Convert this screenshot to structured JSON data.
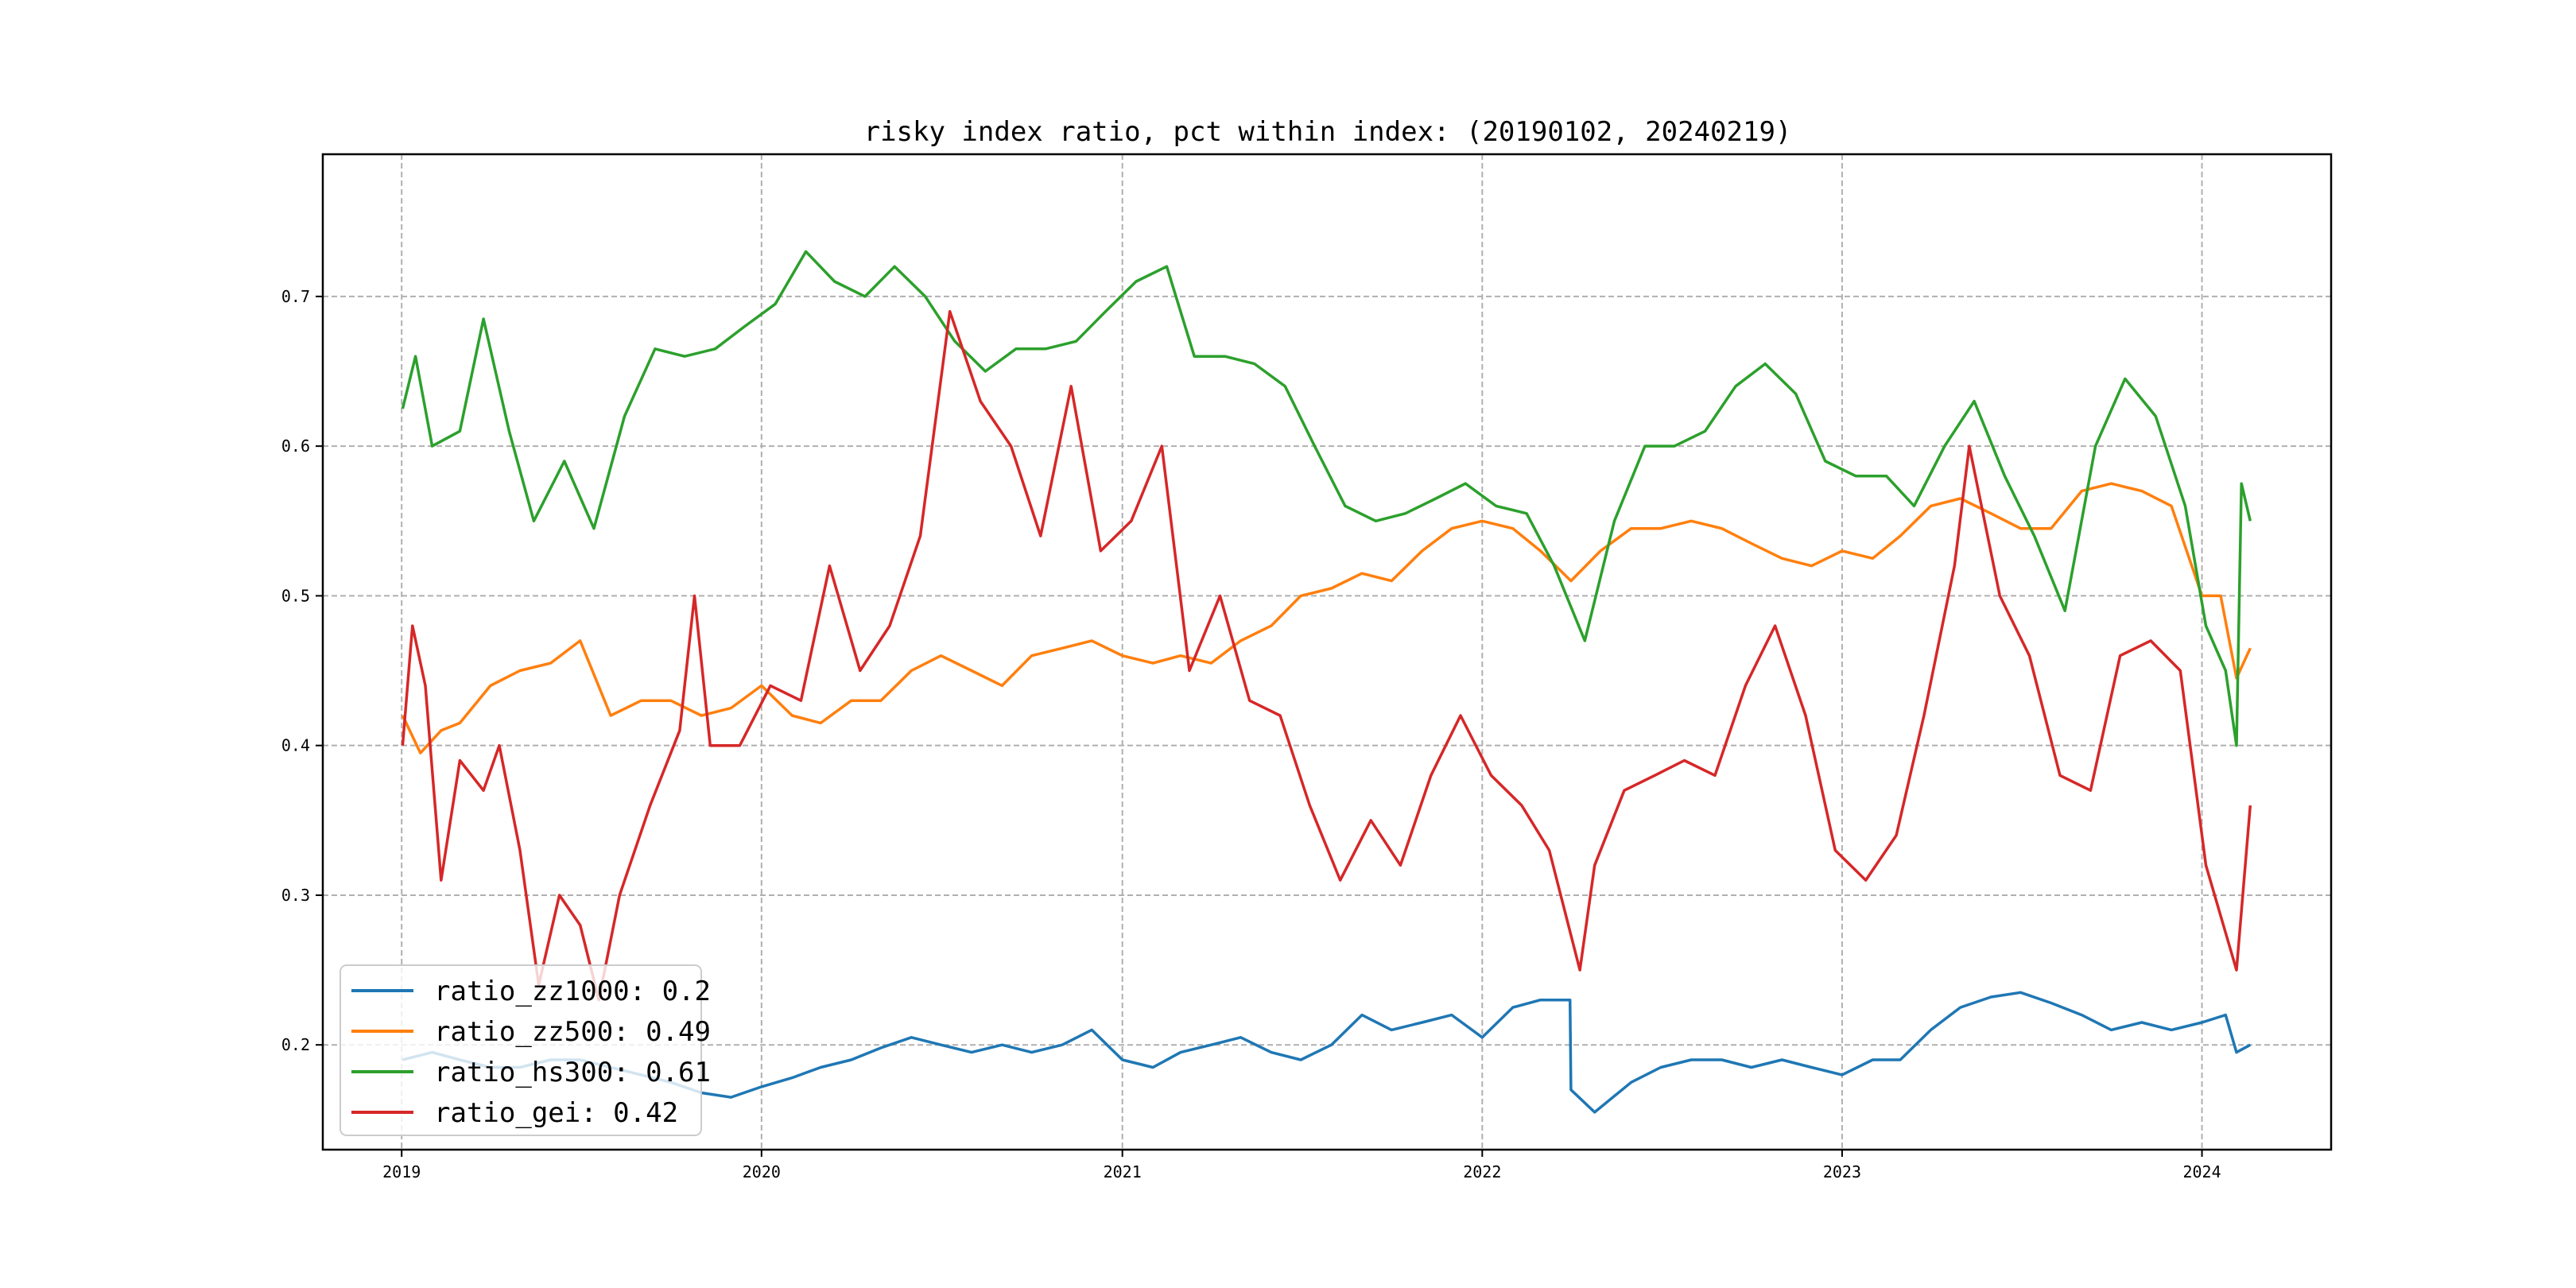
{
  "chart_data": {
    "type": "line",
    "title": "risky index ratio, pct within index: (20190102, 20240219)",
    "xlabel": "",
    "ylabel": "",
    "x_range": [
      "2018-10-13",
      "2024-05-11"
    ],
    "ylim": [
      0.13,
      0.795
    ],
    "x_ticks": [
      {
        "label": "2019",
        "date": "2019-01-01"
      },
      {
        "label": "2020",
        "date": "2020-01-01"
      },
      {
        "label": "2021",
        "date": "2021-01-01"
      },
      {
        "label": "2022",
        "date": "2022-01-01"
      },
      {
        "label": "2023",
        "date": "2023-01-01"
      },
      {
        "label": "2024",
        "date": "2024-01-01"
      }
    ],
    "y_ticks": [
      0.2,
      0.3,
      0.4,
      0.5,
      0.6,
      0.7
    ],
    "y_tick_labels": [
      "0.2",
      "0.3",
      "0.4",
      "0.5",
      "0.6",
      "0.7"
    ],
    "grid": true,
    "legend_position": "lower-left",
    "series": [
      {
        "name": "ratio_zz1000: 0.2",
        "color": "#1f77b4",
        "points": [
          [
            "2019-01-02",
            0.19
          ],
          [
            "2019-02-01",
            0.195
          ],
          [
            "2019-03-01",
            0.19
          ],
          [
            "2019-04-01",
            0.185
          ],
          [
            "2019-05-01",
            0.185
          ],
          [
            "2019-06-01",
            0.19
          ],
          [
            "2019-07-01",
            0.19
          ],
          [
            "2019-08-01",
            0.185
          ],
          [
            "2019-09-01",
            0.18
          ],
          [
            "2019-10-01",
            0.175
          ],
          [
            "2019-11-01",
            0.168
          ],
          [
            "2019-12-01",
            0.165
          ],
          [
            "2020-01-01",
            0.172
          ],
          [
            "2020-02-01",
            0.178
          ],
          [
            "2020-03-01",
            0.185
          ],
          [
            "2020-04-01",
            0.19
          ],
          [
            "2020-05-01",
            0.198
          ],
          [
            "2020-06-01",
            0.205
          ],
          [
            "2020-07-01",
            0.2
          ],
          [
            "2020-08-01",
            0.195
          ],
          [
            "2020-09-01",
            0.2
          ],
          [
            "2020-10-01",
            0.195
          ],
          [
            "2020-11-01",
            0.2
          ],
          [
            "2020-12-01",
            0.21
          ],
          [
            "2021-01-01",
            0.19
          ],
          [
            "2021-02-01",
            0.185
          ],
          [
            "2021-03-01",
            0.195
          ],
          [
            "2021-04-01",
            0.2
          ],
          [
            "2021-05-01",
            0.205
          ],
          [
            "2021-06-01",
            0.195
          ],
          [
            "2021-07-01",
            0.19
          ],
          [
            "2021-08-01",
            0.2
          ],
          [
            "2021-09-01",
            0.22
          ],
          [
            "2021-10-01",
            0.21
          ],
          [
            "2021-11-01",
            0.215
          ],
          [
            "2021-12-01",
            0.22
          ],
          [
            "2022-01-01",
            0.205
          ],
          [
            "2022-02-01",
            0.225
          ],
          [
            "2022-03-01",
            0.23
          ],
          [
            "2022-03-31",
            0.23
          ],
          [
            "2022-04-01",
            0.17
          ],
          [
            "2022-04-25",
            0.155
          ],
          [
            "2022-06-01",
            0.175
          ],
          [
            "2022-07-01",
            0.185
          ],
          [
            "2022-08-01",
            0.19
          ],
          [
            "2022-09-01",
            0.19
          ],
          [
            "2022-10-01",
            0.185
          ],
          [
            "2022-11-01",
            0.19
          ],
          [
            "2022-12-01",
            0.185
          ],
          [
            "2023-01-01",
            0.18
          ],
          [
            "2023-02-01",
            0.19
          ],
          [
            "2023-03-01",
            0.19
          ],
          [
            "2023-04-01",
            0.21
          ],
          [
            "2023-05-01",
            0.225
          ],
          [
            "2023-06-01",
            0.232
          ],
          [
            "2023-07-01",
            0.235
          ],
          [
            "2023-08-01",
            0.228
          ],
          [
            "2023-09-01",
            0.22
          ],
          [
            "2023-10-01",
            0.21
          ],
          [
            "2023-11-01",
            0.215
          ],
          [
            "2023-12-01",
            0.21
          ],
          [
            "2024-01-01",
            0.215
          ],
          [
            "2024-01-25",
            0.22
          ],
          [
            "2024-02-05",
            0.195
          ],
          [
            "2024-02-19",
            0.2
          ]
        ]
      },
      {
        "name": "ratio_zz500: 0.49",
        "color": "#ff7f0e",
        "points": [
          [
            "2019-01-02",
            0.42
          ],
          [
            "2019-01-20",
            0.395
          ],
          [
            "2019-02-10",
            0.41
          ],
          [
            "2019-03-01",
            0.415
          ],
          [
            "2019-04-01",
            0.44
          ],
          [
            "2019-05-01",
            0.45
          ],
          [
            "2019-06-01",
            0.455
          ],
          [
            "2019-07-01",
            0.47
          ],
          [
            "2019-08-01",
            0.42
          ],
          [
            "2019-09-01",
            0.43
          ],
          [
            "2019-10-01",
            0.43
          ],
          [
            "2019-11-01",
            0.42
          ],
          [
            "2019-12-01",
            0.425
          ],
          [
            "2020-01-01",
            0.44
          ],
          [
            "2020-02-01",
            0.42
          ],
          [
            "2020-03-01",
            0.415
          ],
          [
            "2020-04-01",
            0.43
          ],
          [
            "2020-05-01",
            0.43
          ],
          [
            "2020-06-01",
            0.45
          ],
          [
            "2020-07-01",
            0.46
          ],
          [
            "2020-08-01",
            0.45
          ],
          [
            "2020-09-01",
            0.44
          ],
          [
            "2020-10-01",
            0.46
          ],
          [
            "2020-11-01",
            0.465
          ],
          [
            "2020-12-01",
            0.47
          ],
          [
            "2021-01-01",
            0.46
          ],
          [
            "2021-02-01",
            0.455
          ],
          [
            "2021-03-01",
            0.46
          ],
          [
            "2021-04-01",
            0.455
          ],
          [
            "2021-05-01",
            0.47
          ],
          [
            "2021-06-01",
            0.48
          ],
          [
            "2021-07-01",
            0.5
          ],
          [
            "2021-08-01",
            0.505
          ],
          [
            "2021-09-01",
            0.515
          ],
          [
            "2021-10-01",
            0.51
          ],
          [
            "2021-11-01",
            0.53
          ],
          [
            "2021-12-01",
            0.545
          ],
          [
            "2022-01-01",
            0.55
          ],
          [
            "2022-02-01",
            0.545
          ],
          [
            "2022-03-01",
            0.53
          ],
          [
            "2022-04-01",
            0.51
          ],
          [
            "2022-05-01",
            0.53
          ],
          [
            "2022-06-01",
            0.545
          ],
          [
            "2022-07-01",
            0.545
          ],
          [
            "2022-08-01",
            0.55
          ],
          [
            "2022-09-01",
            0.545
          ],
          [
            "2022-10-01",
            0.535
          ],
          [
            "2022-11-01",
            0.525
          ],
          [
            "2022-12-01",
            0.52
          ],
          [
            "2023-01-01",
            0.53
          ],
          [
            "2023-02-01",
            0.525
          ],
          [
            "2023-03-01",
            0.54
          ],
          [
            "2023-04-01",
            0.56
          ],
          [
            "2023-05-01",
            0.565
          ],
          [
            "2023-06-01",
            0.555
          ],
          [
            "2023-07-01",
            0.545
          ],
          [
            "2023-08-01",
            0.545
          ],
          [
            "2023-09-01",
            0.57
          ],
          [
            "2023-10-01",
            0.575
          ],
          [
            "2023-11-01",
            0.57
          ],
          [
            "2023-12-01",
            0.56
          ],
          [
            "2024-01-01",
            0.5
          ],
          [
            "2024-01-20",
            0.5
          ],
          [
            "2024-02-05",
            0.445
          ],
          [
            "2024-02-19",
            0.465
          ]
        ]
      },
      {
        "name": "ratio_hs300: 0.61",
        "color": "#2ca02c",
        "points": [
          [
            "2019-01-02",
            0.625
          ],
          [
            "2019-01-15",
            0.66
          ],
          [
            "2019-02-01",
            0.6
          ],
          [
            "2019-03-01",
            0.61
          ],
          [
            "2019-03-25",
            0.685
          ],
          [
            "2019-04-20",
            0.61
          ],
          [
            "2019-05-15",
            0.55
          ],
          [
            "2019-06-15",
            0.59
          ],
          [
            "2019-07-15",
            0.545
          ],
          [
            "2019-08-15",
            0.62
          ],
          [
            "2019-09-15",
            0.665
          ],
          [
            "2019-10-15",
            0.66
          ],
          [
            "2019-11-15",
            0.665
          ],
          [
            "2019-12-15",
            0.68
          ],
          [
            "2020-01-15",
            0.695
          ],
          [
            "2020-02-15",
            0.73
          ],
          [
            "2020-03-15",
            0.71
          ],
          [
            "2020-04-15",
            0.7
          ],
          [
            "2020-05-15",
            0.72
          ],
          [
            "2020-06-15",
            0.7
          ],
          [
            "2020-07-15",
            0.67
          ],
          [
            "2020-08-15",
            0.65
          ],
          [
            "2020-09-15",
            0.665
          ],
          [
            "2020-10-15",
            0.665
          ],
          [
            "2020-11-15",
            0.67
          ],
          [
            "2020-12-15",
            0.69
          ],
          [
            "2021-01-15",
            0.71
          ],
          [
            "2021-02-15",
            0.72
          ],
          [
            "2021-03-15",
            0.66
          ],
          [
            "2021-04-15",
            0.66
          ],
          [
            "2021-05-15",
            0.655
          ],
          [
            "2021-06-15",
            0.64
          ],
          [
            "2021-07-15",
            0.6
          ],
          [
            "2021-08-15",
            0.56
          ],
          [
            "2021-09-15",
            0.55
          ],
          [
            "2021-10-15",
            0.555
          ],
          [
            "2021-11-15",
            0.565
          ],
          [
            "2021-12-15",
            0.575
          ],
          [
            "2022-01-15",
            0.56
          ],
          [
            "2022-02-15",
            0.555
          ],
          [
            "2022-03-15",
            0.52
          ],
          [
            "2022-04-15",
            0.47
          ],
          [
            "2022-05-15",
            0.55
          ],
          [
            "2022-06-15",
            0.6
          ],
          [
            "2022-07-15",
            0.6
          ],
          [
            "2022-08-15",
            0.61
          ],
          [
            "2022-09-15",
            0.64
          ],
          [
            "2022-10-15",
            0.655
          ],
          [
            "2022-11-15",
            0.635
          ],
          [
            "2022-12-15",
            0.59
          ],
          [
            "2023-01-15",
            0.58
          ],
          [
            "2023-02-15",
            0.58
          ],
          [
            "2023-03-15",
            0.56
          ],
          [
            "2023-04-15",
            0.6
          ],
          [
            "2023-05-15",
            0.63
          ],
          [
            "2023-06-15",
            0.58
          ],
          [
            "2023-07-15",
            0.54
          ],
          [
            "2023-08-15",
            0.49
          ],
          [
            "2023-09-15",
            0.6
          ],
          [
            "2023-10-15",
            0.645
          ],
          [
            "2023-11-15",
            0.62
          ],
          [
            "2023-12-15",
            0.56
          ],
          [
            "2024-01-05",
            0.48
          ],
          [
            "2024-01-25",
            0.45
          ],
          [
            "2024-02-05",
            0.4
          ],
          [
            "2024-02-10",
            0.575
          ],
          [
            "2024-02-19",
            0.55
          ]
        ]
      },
      {
        "name": "ratio_gei: 0.42",
        "color": "#d62728",
        "points": [
          [
            "2019-01-02",
            0.4
          ],
          [
            "2019-01-12",
            0.48
          ],
          [
            "2019-01-25",
            0.44
          ],
          [
            "2019-02-10",
            0.31
          ],
          [
            "2019-03-01",
            0.39
          ],
          [
            "2019-03-25",
            0.37
          ],
          [
            "2019-04-10",
            0.4
          ],
          [
            "2019-05-01",
            0.33
          ],
          [
            "2019-05-20",
            0.24
          ],
          [
            "2019-06-10",
            0.3
          ],
          [
            "2019-07-01",
            0.28
          ],
          [
            "2019-07-20",
            0.23
          ],
          [
            "2019-08-10",
            0.3
          ],
          [
            "2019-09-10",
            0.36
          ],
          [
            "2019-10-10",
            0.41
          ],
          [
            "2019-10-25",
            0.5
          ],
          [
            "2019-11-10",
            0.4
          ],
          [
            "2019-12-10",
            0.4
          ],
          [
            "2020-01-10",
            0.44
          ],
          [
            "2020-02-10",
            0.43
          ],
          [
            "2020-03-10",
            0.52
          ],
          [
            "2020-04-10",
            0.45
          ],
          [
            "2020-05-10",
            0.48
          ],
          [
            "2020-06-10",
            0.54
          ],
          [
            "2020-07-10",
            0.69
          ],
          [
            "2020-08-10",
            0.63
          ],
          [
            "2020-09-10",
            0.6
          ],
          [
            "2020-10-10",
            0.54
          ],
          [
            "2020-11-10",
            0.64
          ],
          [
            "2020-12-10",
            0.53
          ],
          [
            "2021-01-10",
            0.55
          ],
          [
            "2021-02-10",
            0.6
          ],
          [
            "2021-03-10",
            0.45
          ],
          [
            "2021-04-10",
            0.5
          ],
          [
            "2021-05-10",
            0.43
          ],
          [
            "2021-06-10",
            0.42
          ],
          [
            "2021-07-10",
            0.36
          ],
          [
            "2021-08-10",
            0.31
          ],
          [
            "2021-09-10",
            0.35
          ],
          [
            "2021-10-10",
            0.32
          ],
          [
            "2021-11-10",
            0.38
          ],
          [
            "2021-12-10",
            0.42
          ],
          [
            "2022-01-10",
            0.38
          ],
          [
            "2022-02-10",
            0.36
          ],
          [
            "2022-03-10",
            0.33
          ],
          [
            "2022-04-10",
            0.25
          ],
          [
            "2022-04-25",
            0.32
          ],
          [
            "2022-05-25",
            0.37
          ],
          [
            "2022-06-25",
            0.38
          ],
          [
            "2022-07-25",
            0.39
          ],
          [
            "2022-08-25",
            0.38
          ],
          [
            "2022-09-25",
            0.44
          ],
          [
            "2022-10-25",
            0.48
          ],
          [
            "2022-11-25",
            0.42
          ],
          [
            "2022-12-25",
            0.33
          ],
          [
            "2023-01-25",
            0.31
          ],
          [
            "2023-02-25",
            0.34
          ],
          [
            "2023-03-25",
            0.42
          ],
          [
            "2023-04-25",
            0.52
          ],
          [
            "2023-05-10",
            0.6
          ],
          [
            "2023-06-10",
            0.5
          ],
          [
            "2023-07-10",
            0.46
          ],
          [
            "2023-08-10",
            0.38
          ],
          [
            "2023-09-10",
            0.37
          ],
          [
            "2023-10-10",
            0.46
          ],
          [
            "2023-11-10",
            0.47
          ],
          [
            "2023-12-10",
            0.45
          ],
          [
            "2024-01-05",
            0.32
          ],
          [
            "2024-02-05",
            0.25
          ],
          [
            "2024-02-19",
            0.36
          ]
        ]
      }
    ]
  }
}
